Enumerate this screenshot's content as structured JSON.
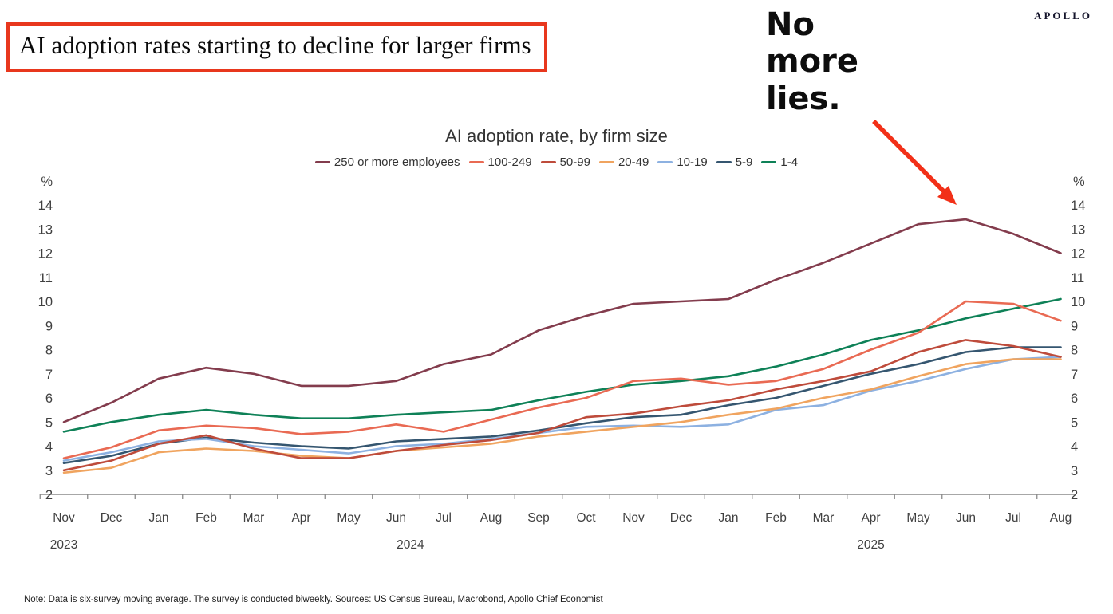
{
  "header": {
    "title": "AI adoption rates starting to decline for larger firms",
    "brand": "APOLLO",
    "annotation": "No more lies."
  },
  "colors": {
    "title_box_border": "#e8371d",
    "annotation_arrow": "#f23018",
    "axis": "#8a8a8a",
    "tick_label": "#404040"
  },
  "note": "Note: Data is six-survey moving average. The survey is conducted biweekly. Sources: US Census Bureau, Macrobond, Apollo Chief Economist",
  "chart_data": {
    "type": "line",
    "title": "AI adoption rate, by firm size",
    "unit_label": "%",
    "grid": false,
    "legend_position": "top",
    "ylim": [
      2,
      14
    ],
    "yticks": [
      2,
      3,
      4,
      5,
      6,
      7,
      8,
      9,
      10,
      11,
      12,
      13,
      14
    ],
    "x_labels": [
      "Nov",
      "Dec",
      "Jan",
      "Feb",
      "Mar",
      "Apr",
      "May",
      "Jun",
      "Jul",
      "Aug",
      "Sep",
      "Oct",
      "Nov",
      "Dec",
      "Jan",
      "Feb",
      "Mar",
      "Apr",
      "May",
      "Jun",
      "Jul",
      "Aug"
    ],
    "year_labels": [
      {
        "text": "2023",
        "month_index": 0
      },
      {
        "text": "2024",
        "month_index": 7.3
      },
      {
        "text": "2025",
        "month_index": 17
      }
    ],
    "categories": [
      "Nov 2023",
      "Dec 2023",
      "Jan 2024",
      "Feb 2024",
      "Mar 2024",
      "Apr 2024",
      "May 2024",
      "Jun 2024",
      "Jul 2024",
      "Aug 2024",
      "Sep 2024",
      "Oct 2024",
      "Nov 2024",
      "Dec 2024",
      "Jan 2025",
      "Feb 2025",
      "Mar 2025",
      "Apr 2025",
      "May 2025",
      "Jun 2025",
      "Jul 2025",
      "Aug 2025"
    ],
    "series": [
      {
        "name": "250 or more employees",
        "color": "#833c4d",
        "values": [
          5.0,
          5.8,
          6.8,
          7.25,
          7.0,
          6.5,
          6.5,
          6.7,
          7.4,
          7.8,
          8.8,
          9.4,
          9.9,
          10.0,
          10.1,
          10.9,
          11.6,
          12.4,
          13.2,
          13.4,
          12.8,
          12.0
        ]
      },
      {
        "name": "100-249",
        "color": "#e96a53",
        "values": [
          3.5,
          3.95,
          4.65,
          4.85,
          4.75,
          4.5,
          4.6,
          4.9,
          4.6,
          5.1,
          5.6,
          6.0,
          6.7,
          6.8,
          6.55,
          6.7,
          7.2,
          8.0,
          8.7,
          10.0,
          9.9,
          9.2
        ]
      },
      {
        "name": "50-99",
        "color": "#be4b3b",
        "values": [
          3.0,
          3.4,
          4.1,
          4.45,
          3.9,
          3.5,
          3.5,
          3.8,
          4.05,
          4.25,
          4.55,
          5.2,
          5.35,
          5.65,
          5.9,
          6.35,
          6.7,
          7.1,
          7.9,
          8.4,
          8.15,
          7.7
        ]
      },
      {
        "name": "20-49",
        "color": "#f0a45f",
        "values": [
          2.9,
          3.1,
          3.75,
          3.9,
          3.8,
          3.6,
          3.5,
          3.8,
          3.95,
          4.1,
          4.4,
          4.6,
          4.8,
          5.0,
          5.3,
          5.55,
          6.0,
          6.35,
          6.9,
          7.4,
          7.6,
          7.6
        ]
      },
      {
        "name": "10-19",
        "color": "#8db1e1",
        "values": [
          3.4,
          3.75,
          4.2,
          4.3,
          4.0,
          3.85,
          3.7,
          4.0,
          4.1,
          4.3,
          4.55,
          4.8,
          4.85,
          4.8,
          4.9,
          5.5,
          5.7,
          6.3,
          6.7,
          7.2,
          7.6,
          7.7
        ]
      },
      {
        "name": "5-9",
        "color": "#355670",
        "values": [
          3.3,
          3.6,
          4.1,
          4.35,
          4.15,
          4.0,
          3.9,
          4.2,
          4.3,
          4.4,
          4.65,
          4.95,
          5.2,
          5.3,
          5.7,
          6.0,
          6.5,
          7.0,
          7.4,
          7.9,
          8.1,
          8.1
        ]
      },
      {
        "name": "1-4",
        "color": "#0e8157",
        "values": [
          4.6,
          5.0,
          5.3,
          5.5,
          5.3,
          5.15,
          5.15,
          5.3,
          5.4,
          5.5,
          5.9,
          6.25,
          6.55,
          6.7,
          6.9,
          7.3,
          7.8,
          8.4,
          8.8,
          9.3,
          9.7,
          10.1
        ]
      }
    ]
  }
}
